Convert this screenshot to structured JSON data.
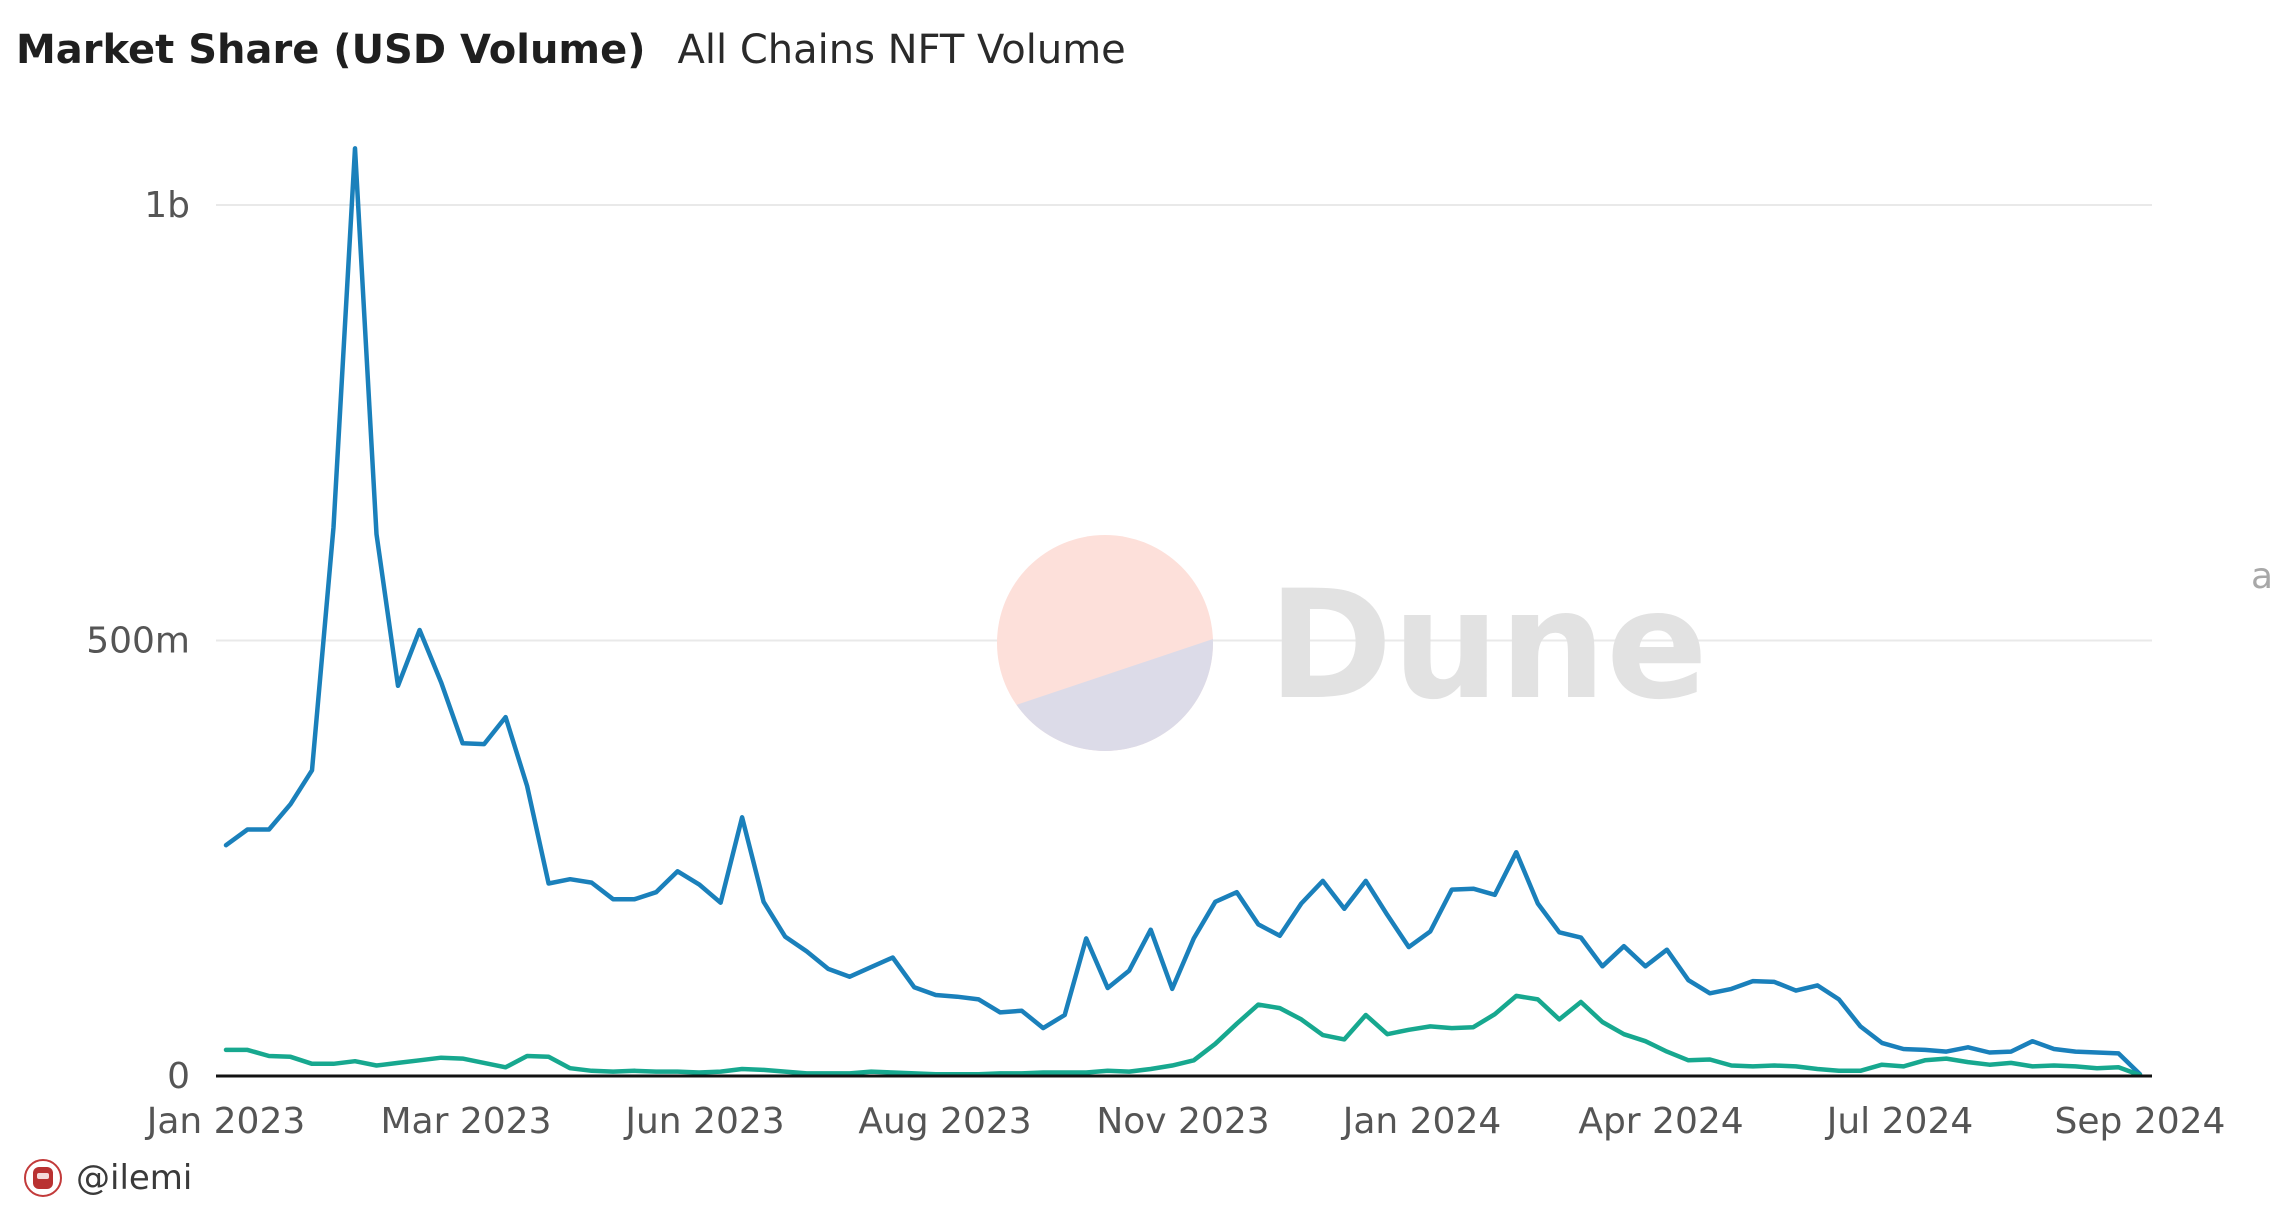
{
  "header": {
    "title": "Market Share (USD Volume)",
    "subtitle": "All Chains NFT Volume"
  },
  "watermark": {
    "text": "Dune",
    "colors": {
      "top": "#fde0da",
      "bottom": "#dcdbe8"
    }
  },
  "edge_text": "a",
  "footer": {
    "author": "@ilemi"
  },
  "colors": {
    "series_1": "#1a80bb",
    "series_2": "#17a88f",
    "grid": "#e9e9e9",
    "axis": "#111111"
  },
  "chart_data": {
    "type": "line",
    "x_start": "2023-01-02",
    "x_interval": "weekly",
    "x_ticks": [
      "Jan 2023",
      "Mar 2023",
      "Jun 2023",
      "Aug 2023",
      "Nov 2023",
      "Jan 2024",
      "Apr 2024",
      "Jul 2024",
      "Sep 2024"
    ],
    "y_ticks": [
      {
        "value": 0,
        "label": "0"
      },
      {
        "value": 500000000,
        "label": "500m"
      },
      {
        "value": 1000000000,
        "label": "1b"
      }
    ],
    "ylim": [
      0,
      1000000000
    ],
    "series": [
      {
        "values": [
          265000000,
          283000000,
          283000000,
          312000000,
          351000000,
          630000000,
          1065000000,
          622000000,
          448000000,
          512000000,
          452000000,
          382000000,
          381000000,
          412000000,
          333000000,
          221000000,
          226000000,
          222000000,
          203000000,
          203000000,
          211000000,
          235000000,
          220000000,
          199000000,
          297000000,
          200000000,
          160000000,
          143000000,
          123000000,
          114000000,
          125000000,
          136000000,
          102000000,
          93000000,
          91000000,
          88000000,
          73000000,
          75000000,
          55000000,
          70000000,
          158000000,
          101000000,
          121000000,
          168000000,
          100000000,
          158000000,
          200000000,
          211000000,
          174000000,
          161000000,
          198000000,
          224000000,
          192000000,
          224000000,
          185000000,
          148000000,
          166000000,
          214000000,
          215000000,
          208000000,
          257000000,
          198000000,
          165000000,
          159000000,
          126000000,
          149000000,
          126000000,
          145000000,
          110000000,
          95000000,
          100000000,
          109000000,
          108000000,
          98000000,
          104000000,
          88000000,
          57000000,
          38000000,
          31000000,
          30000000,
          28000000,
          33000000,
          27000000,
          28000000,
          40000000,
          31000000,
          28000000,
          27000000,
          26000000,
          2000000
        ]
      },
      {
        "values": [
          30000000,
          30000000,
          23000000,
          22000000,
          14000000,
          14000000,
          17000000,
          12000000,
          15000000,
          18000000,
          21000000,
          20000000,
          15000000,
          10000000,
          23000000,
          22000000,
          9000000,
          6000000,
          5000000,
          6000000,
          5000000,
          5000000,
          4000000,
          5000000,
          8000000,
          7000000,
          5000000,
          3000000,
          3000000,
          3000000,
          5000000,
          4000000,
          3000000,
          2000000,
          2000000,
          2000000,
          3000000,
          3000000,
          4000000,
          4000000,
          4000000,
          6000000,
          5000000,
          8000000,
          12000000,
          18000000,
          37000000,
          60000000,
          82000000,
          78000000,
          65000000,
          47000000,
          42000000,
          70000000,
          48000000,
          53000000,
          57000000,
          55000000,
          56000000,
          71000000,
          92000000,
          88000000,
          65000000,
          85000000,
          62000000,
          48000000,
          40000000,
          28000000,
          18000000,
          19000000,
          12000000,
          11000000,
          12000000,
          11000000,
          8000000,
          6000000,
          6000000,
          13000000,
          11000000,
          18000000,
          20000000,
          16000000,
          13000000,
          15000000,
          11000000,
          12000000,
          11000000,
          9000000,
          10000000,
          1000000
        ]
      }
    ],
    "grid": "horizontal",
    "legend": "none"
  }
}
